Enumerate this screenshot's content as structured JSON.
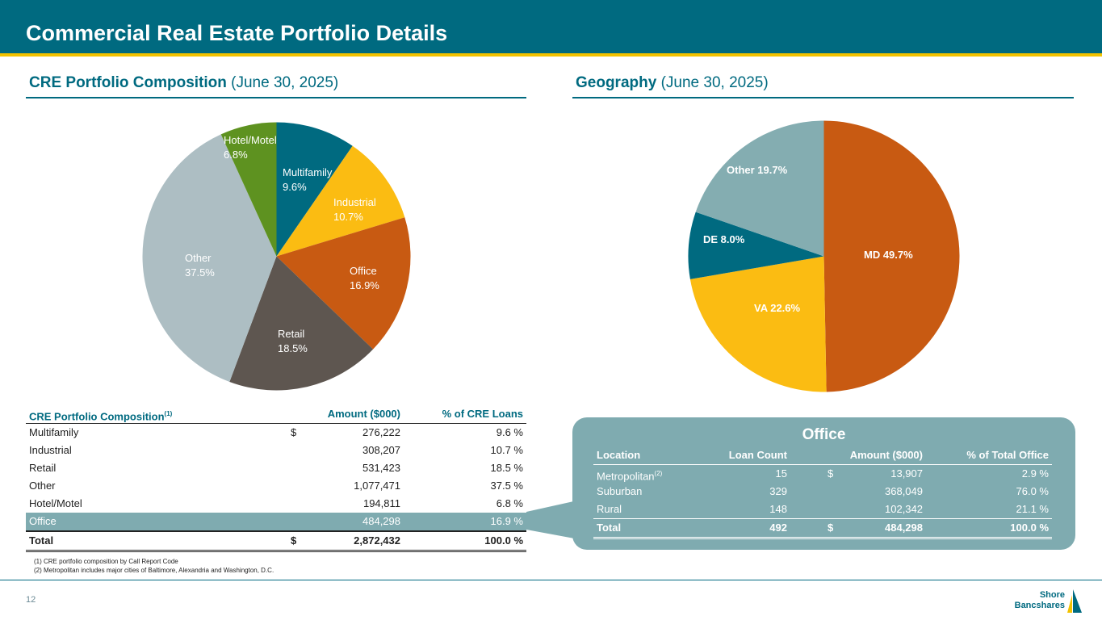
{
  "header": {
    "title": "Commercial Real Estate Portfolio Details"
  },
  "left_section": {
    "title_bold": "CRE Portfolio Composition",
    "title_rest": " (June 30, 2025)"
  },
  "right_section": {
    "title_bold": "Geography",
    "title_rest": " (June 30, 2025)"
  },
  "colors": {
    "teal": "#006a80",
    "yellow": "#fbbc12",
    "orange": "#c85a12",
    "brown": "#5e5650",
    "gray": "#adbec3",
    "green": "#5e9220",
    "slate": "#84adb1"
  },
  "chart_data": [
    {
      "type": "pie",
      "title": "CRE Portfolio Composition (June 30, 2025)",
      "slices": [
        {
          "label": "Multifamily",
          "value": 9.6,
          "display": "9.6%"
        },
        {
          "label": "Industrial",
          "value": 10.7,
          "display": "10.7%"
        },
        {
          "label": "Office",
          "value": 16.9,
          "display": "16.9%"
        },
        {
          "label": "Retail",
          "value": 18.5,
          "display": "18.5%"
        },
        {
          "label": "Other",
          "value": 37.5,
          "display": "37.5%"
        },
        {
          "label": "Hotel/Motel",
          "value": 6.8,
          "display": "6.8%"
        }
      ]
    },
    {
      "type": "pie",
      "title": "Geography (June 30, 2025)",
      "slices": [
        {
          "label": "MD",
          "value": 49.7,
          "display": "MD 49.7%"
        },
        {
          "label": "VA",
          "value": 22.6,
          "display": "VA 22.6%"
        },
        {
          "label": "DE",
          "value": 8.0,
          "display": "DE 8.0%"
        },
        {
          "label": "Other",
          "value": 19.7,
          "display": "Other 19.7%"
        }
      ]
    }
  ],
  "cre_table": {
    "headers": {
      "category": "CRE Portfolio Composition",
      "category_note": "(1)",
      "amount": "Amount ($000)",
      "pct": "% of CRE Loans"
    },
    "rows": [
      {
        "name": "Multifamily",
        "currency": "$",
        "amount": "276,222",
        "pct": "9.6 %"
      },
      {
        "name": "Industrial",
        "currency": "",
        "amount": "308,207",
        "pct": "10.7 %"
      },
      {
        "name": "Retail",
        "currency": "",
        "amount": "531,423",
        "pct": "18.5 %"
      },
      {
        "name": "Other",
        "currency": "",
        "amount": "1,077,471",
        "pct": "37.5 %"
      },
      {
        "name": "Hotel/Motel",
        "currency": "",
        "amount": "194,811",
        "pct": "6.8 %"
      },
      {
        "name": "Office",
        "currency": "",
        "amount": "484,298",
        "pct": "16.9 %"
      }
    ],
    "total": {
      "name": "Total",
      "currency": "$",
      "amount": "2,872,432",
      "pct": "100.0 %"
    }
  },
  "office_table": {
    "title": "Office",
    "headers": {
      "location": "Location",
      "count": "Loan Count",
      "amount": "Amount ($000)",
      "pct": "% of Total Office"
    },
    "rows": [
      {
        "name": "Metropolitan",
        "note": "(2)",
        "count": "15",
        "currency": "$",
        "amount": "13,907",
        "pct": "2.9 %"
      },
      {
        "name": "Suburban",
        "note": "",
        "count": "329",
        "currency": "",
        "amount": "368,049",
        "pct": "76.0 %"
      },
      {
        "name": "Rural",
        "note": "",
        "count": "148",
        "currency": "",
        "amount": "102,342",
        "pct": "21.1 %"
      }
    ],
    "total": {
      "name": "Total",
      "count": "492",
      "currency": "$",
      "amount": "484,298",
      "pct": "100.0 %"
    }
  },
  "footnotes": {
    "note1": "(1) CRE portfolio composition by Call Report Code",
    "note2": "(2) Metropolitan includes major cities of Baltimore, Alexandria and Washington, D.C."
  },
  "footer": {
    "page_number": "12",
    "logo_line1": "Shore",
    "logo_line2": "Bancshares"
  }
}
